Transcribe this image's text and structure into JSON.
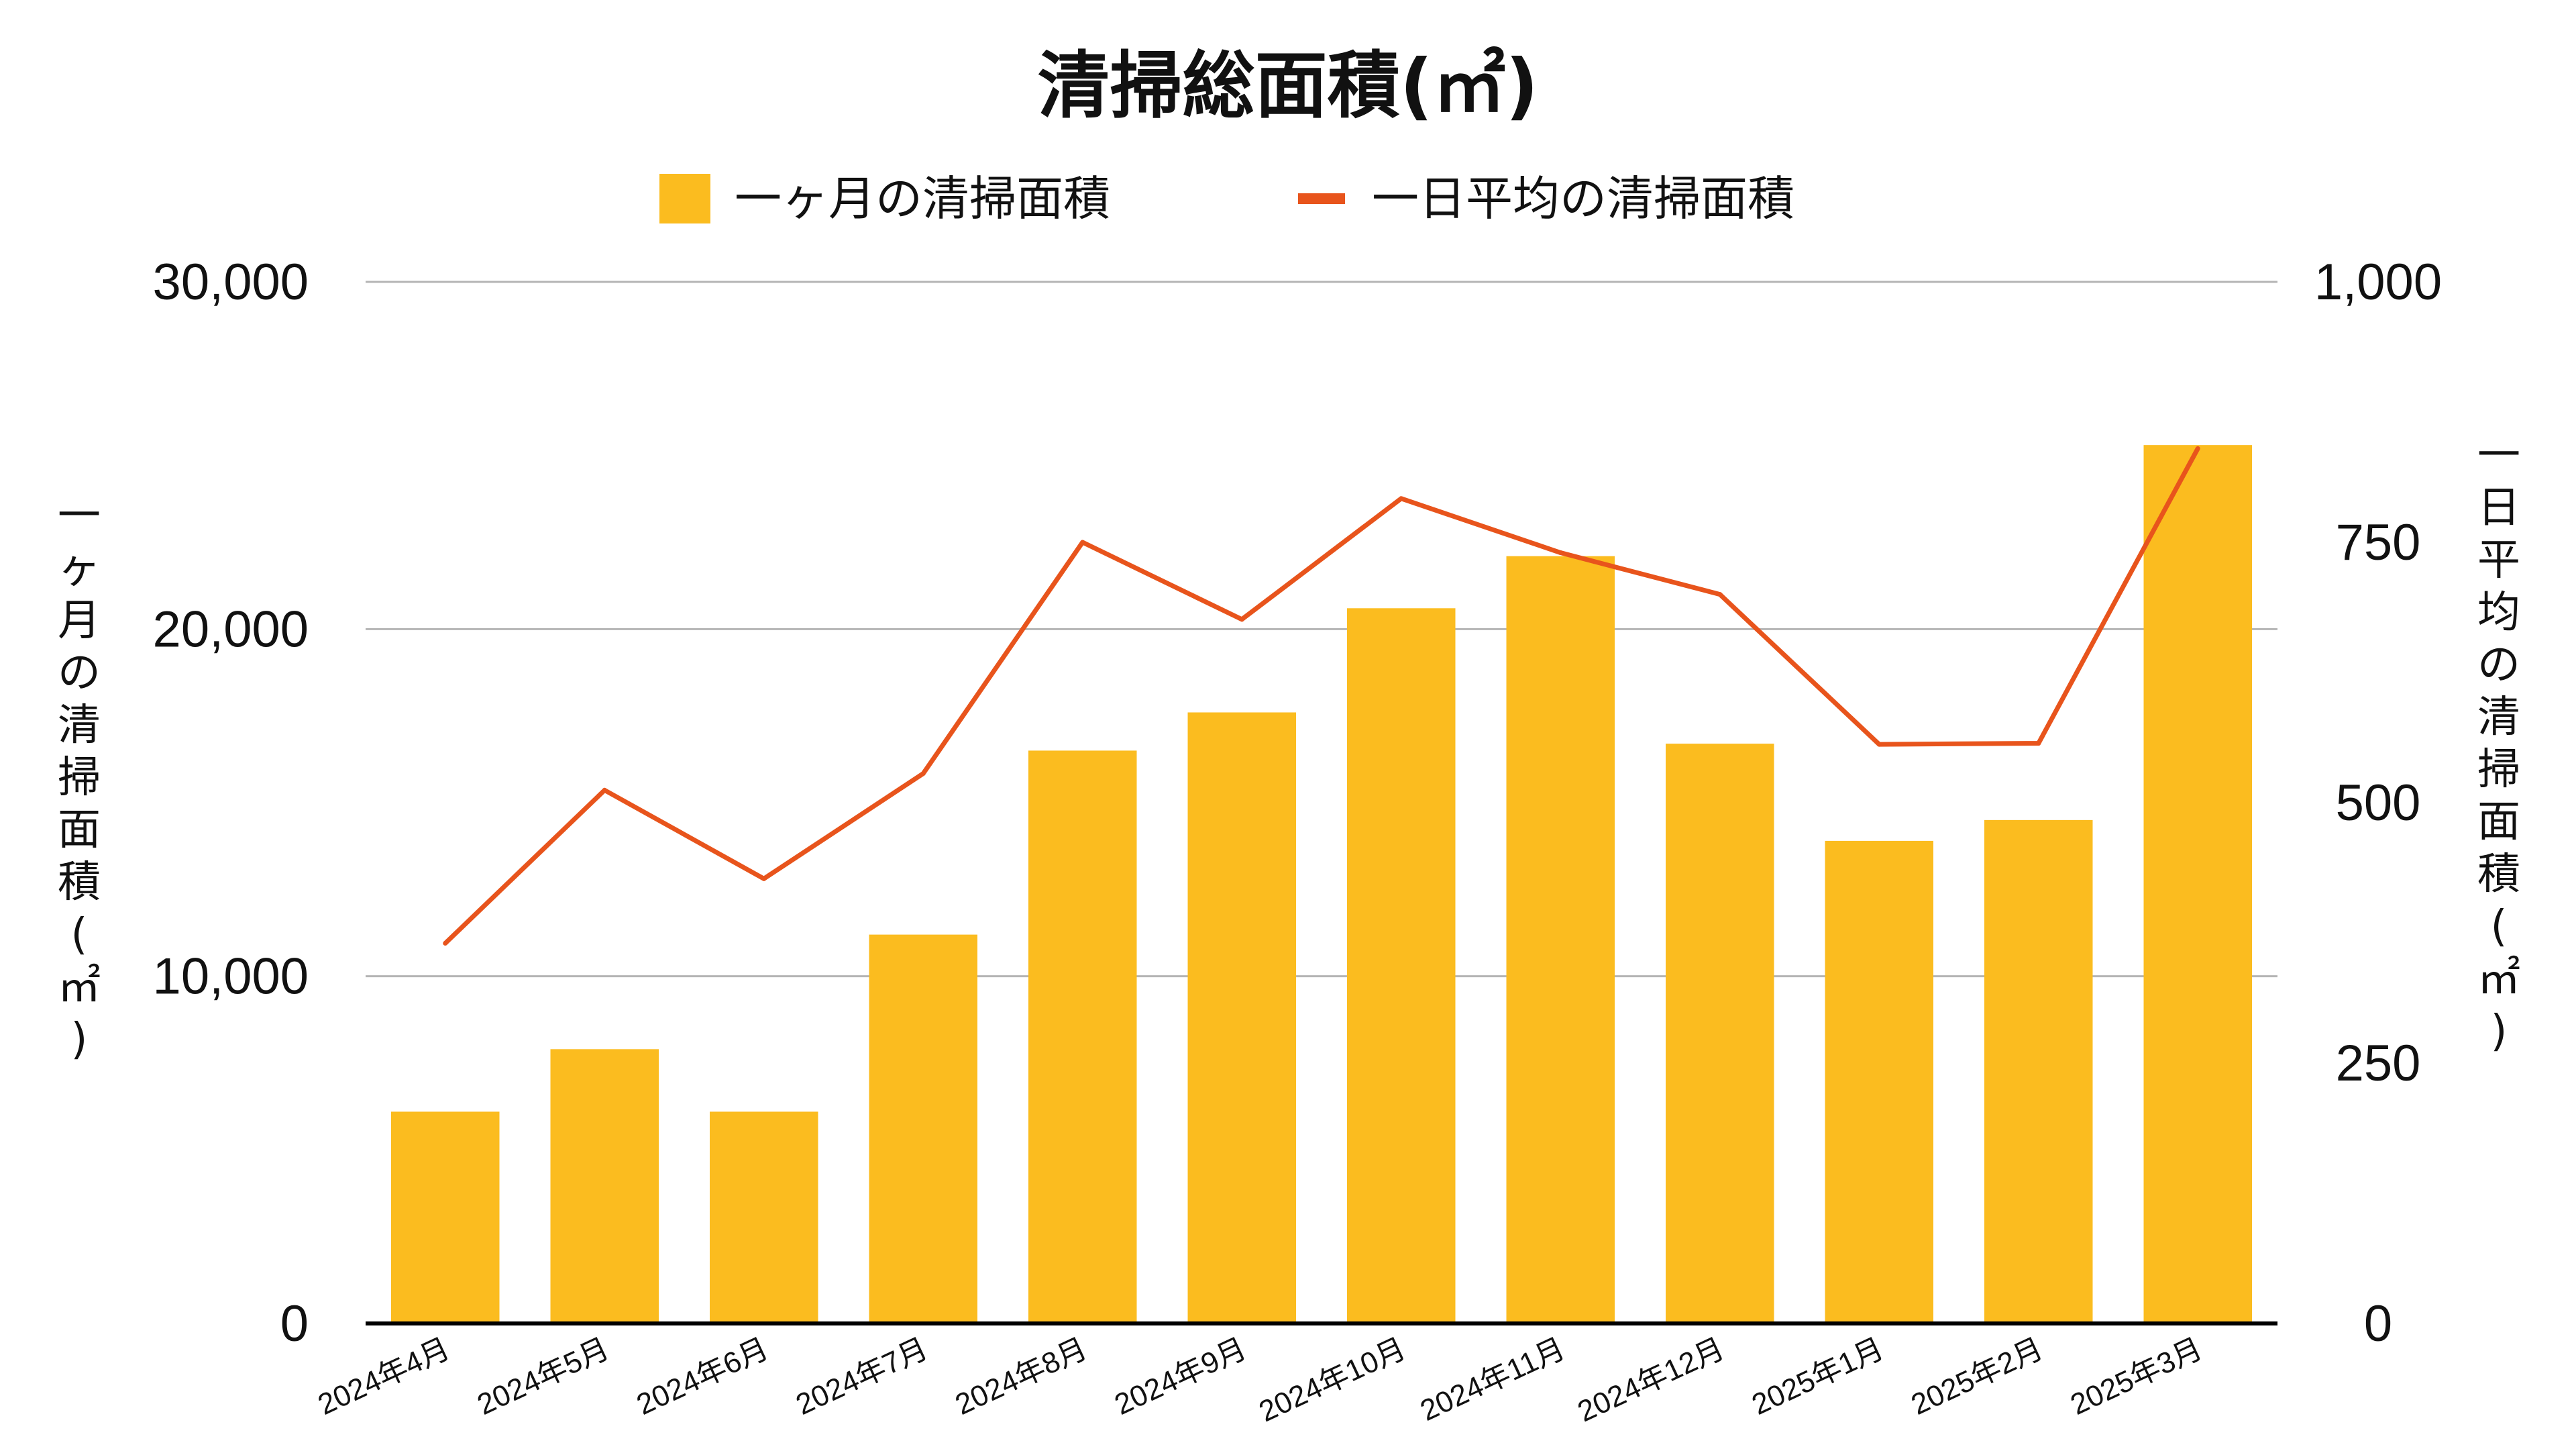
{
  "colors": {
    "bar": "#FBBC1F",
    "line": "#E8541C",
    "grid": "#B5B5B5",
    "axis": "#000000",
    "text": "#111111"
  },
  "chart_data": {
    "type": "bar",
    "title": "清掃総面積(㎡)",
    "categories": [
      "2024年4月",
      "2024年5月",
      "2024年6月",
      "2024年7月",
      "2024年8月",
      "2024年9月",
      "2024年10月",
      "2024年11月",
      "2024年12月",
      "2025年1月",
      "2025年2月",
      "2025年3月"
    ],
    "series": [
      {
        "name": "一ヶ月の清掃面積",
        "type": "bar",
        "axis": "left",
        "values": [
          6100,
          7900,
          6100,
          11200,
          16500,
          17600,
          20600,
          22100,
          16700,
          13900,
          14500,
          25300
        ]
      },
      {
        "name": "一日平均の清掃面積",
        "type": "line",
        "axis": "right",
        "values": [
          365,
          512,
          427,
          528,
          750,
          676,
          792,
          740,
          700,
          556,
          557,
          840
        ]
      }
    ],
    "ylabel_left": "一ヶ月の清掃面積(㎡)",
    "ylabel_right": "一日平均の清掃面積(㎡)",
    "ylim_left": [
      0,
      30000
    ],
    "ylim_right": [
      0,
      1000
    ],
    "yticks_left": [
      "0",
      "10,000",
      "20,000",
      "30,000"
    ],
    "yticks_right": [
      "0",
      "250",
      "500",
      "750",
      "1,000"
    ],
    "legend_position": "top",
    "grid": true
  }
}
